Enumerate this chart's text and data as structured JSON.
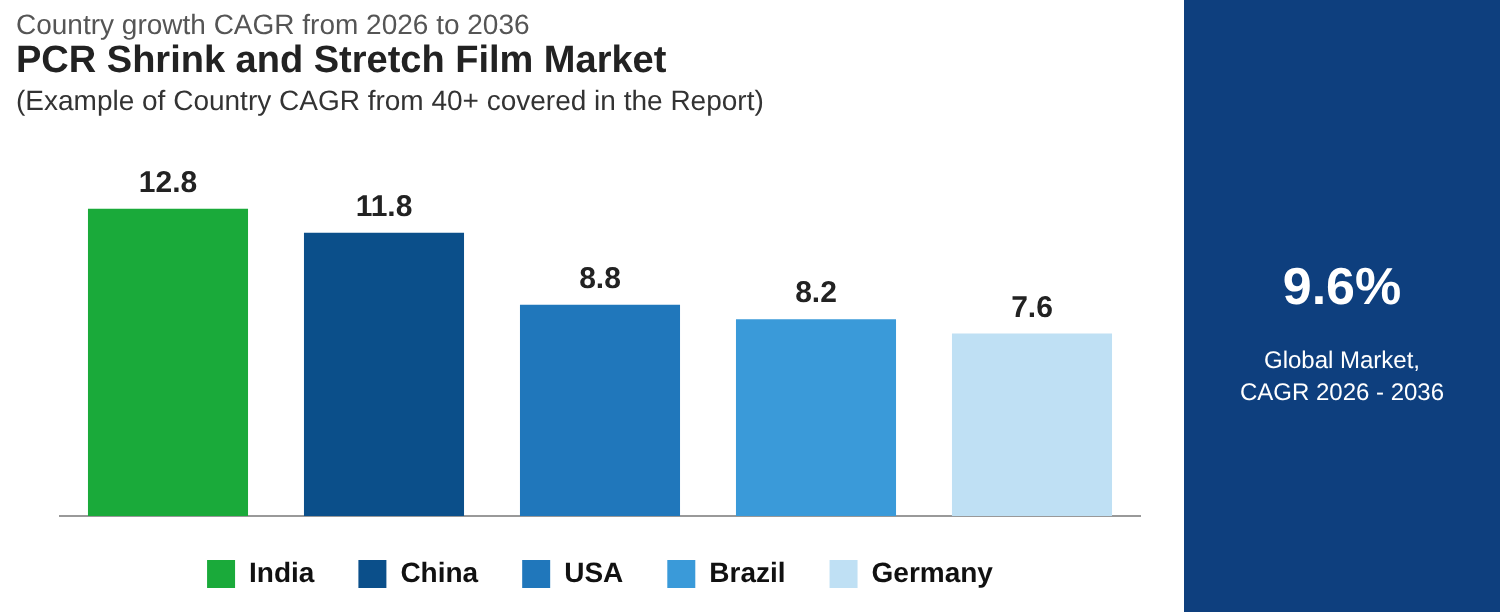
{
  "chart_data": [
    {
      "type": "bar",
      "title": "PCR Shrink and Stretch Film Market",
      "subtitle": "(Example of Country CAGR from 40+ covered in the Report)",
      "annotations": [
        "Country growth CAGR from 2026 to 2036"
      ],
      "categories": [
        null,
        null,
        null,
        null,
        null
      ],
      "series": [
        {
          "name": "India",
          "color": "#1aaa3a",
          "values": [
            12.8,
            null,
            null,
            null,
            null
          ]
        },
        {
          "name": "China",
          "color": "#0b4f8a",
          "values": [
            null,
            11.8,
            null,
            null,
            null
          ]
        },
        {
          "name": "USA",
          "color": "#2077bb",
          "values": [
            null,
            null,
            8.8,
            null,
            null
          ]
        },
        {
          "name": "Brazil",
          "color": "#3a9ad9",
          "values": [
            null,
            null,
            null,
            8.2,
            null
          ]
        },
        {
          "name": "Germany",
          "color": "#bfe0f4",
          "values": [
            null,
            null,
            null,
            null,
            7.6
          ]
        }
      ],
      "stacked": true,
      "data_labels": true,
      "legend": "bottom",
      "grid": false,
      "tick_labels": false
    },
    {
      "type": "other",
      "title": "9.6%",
      "annotations": [
        "Global Market,",
        "CAGR 2026 - 2036"
      ]
    }
  ]
}
